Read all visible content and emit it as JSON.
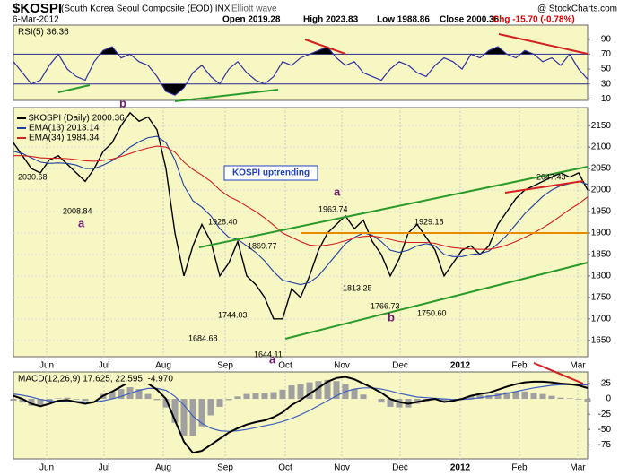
{
  "chart_data": [
    {
      "type": "line",
      "title": "$KOSPI",
      "subtitle": "(South Korea Seoul Composite (EOD) INX",
      "overlay": "Elliott wave",
      "source": "@ StockCharts.com",
      "date": "6-Mar-2012",
      "stats": [
        "Open 2019.28",
        "High 2023.83",
        "Low 1988.86",
        "Close 2000.36",
        "Chg -15.70 (-0.78%)"
      ],
      "note": "KOSPI uptrending",
      "annotations": [
        "2030.68",
        "2008.84",
        "1928.40",
        "1869.77",
        "1963.74",
        "1929.18",
        "2047.43",
        "1813.25",
        "1766.73",
        "1750.60",
        "1744.03",
        "1684.68",
        "1644.11"
      ],
      "wave_labels": [
        "a",
        "b",
        "a",
        "b",
        "a"
      ],
      "xlim": [
        0,
        64
      ],
      "xticks": [
        {
          "value": 3.7,
          "label": "Jun"
        },
        {
          "value": 10.1,
          "label": "Jul"
        },
        {
          "value": 16.7,
          "label": "Aug"
        },
        {
          "value": 23.6,
          "label": "Sep"
        },
        {
          "value": 30.3,
          "label": "Oct"
        },
        {
          "value": 36.6,
          "label": "Nov"
        },
        {
          "value": 43.1,
          "label": "Dec"
        },
        {
          "value": 49.8,
          "label": "2012"
        },
        {
          "value": 56.4,
          "label": "Feb"
        },
        {
          "value": 62.9,
          "label": "Mar"
        }
      ],
      "ylim": [
        1612,
        2192
      ],
      "yticks": [
        2150,
        2100,
        2050,
        2000,
        1950,
        1900,
        1850,
        1800,
        1750,
        1700,
        1650
      ],
      "grid": true,
      "series": [
        {
          "name": "$KOSPI (Daily) 2000.36",
          "color": "#000000",
          "values": [
            2110,
            2080,
            2050,
            2040,
            2070,
            2080,
            2060,
            2040,
            2020,
            2050,
            2090,
            2110,
            2150,
            2180,
            2160,
            2170,
            2140,
            2050,
            1900,
            1800,
            1870,
            1920,
            1880,
            1800,
            1830,
            1880,
            1800,
            1780,
            1750,
            1700,
            1700,
            1770,
            1750,
            1800,
            1860,
            1900,
            1920,
            1940,
            1910,
            1930,
            1880,
            1850,
            1800,
            1840,
            1900,
            1920,
            1890,
            1860,
            1800,
            1830,
            1860,
            1870,
            1850,
            1870,
            1920,
            1950,
            1980,
            2000,
            2010,
            2020,
            2030,
            2040,
            2030,
            2040,
            2000
          ]
        },
        {
          "name": "EMA(13) 2013.14",
          "color": "#1f3f9f",
          "values": [
            2090,
            2085,
            2075,
            2065,
            2062,
            2063,
            2062,
            2058,
            2050,
            2050,
            2058,
            2068,
            2082,
            2100,
            2112,
            2122,
            2125,
            2110,
            2070,
            2010,
            1975,
            1960,
            1940,
            1910,
            1890,
            1885,
            1870,
            1855,
            1835,
            1810,
            1790,
            1785,
            1780,
            1785,
            1800,
            1825,
            1850,
            1875,
            1890,
            1900,
            1895,
            1880,
            1860,
            1855,
            1860,
            1870,
            1875,
            1870,
            1850,
            1845,
            1845,
            1850,
            1852,
            1858,
            1875,
            1895,
            1920,
            1945,
            1965,
            1985,
            2000,
            2010,
            2015,
            2020,
            2013
          ]
        },
        {
          "name": "EMA(34) 1984.34",
          "color": "#d42020",
          "values": [
            2080,
            2080,
            2078,
            2075,
            2074,
            2074,
            2073,
            2071,
            2068,
            2067,
            2069,
            2072,
            2078,
            2085,
            2092,
            2098,
            2102,
            2100,
            2088,
            2065,
            2048,
            2035,
            2020,
            2000,
            1985,
            1975,
            1962,
            1950,
            1935,
            1918,
            1900,
            1890,
            1880,
            1872,
            1870,
            1872,
            1876,
            1882,
            1888,
            1892,
            1893,
            1890,
            1885,
            1880,
            1878,
            1878,
            1878,
            1876,
            1870,
            1866,
            1864,
            1863,
            1862,
            1862,
            1866,
            1872,
            1880,
            1890,
            1900,
            1912,
            1925,
            1940,
            1955,
            1968,
            1984
          ]
        }
      ]
    },
    {
      "type": "line",
      "title": "RSI(5) 36.36",
      "xlim": [
        0,
        64
      ],
      "ylim": [
        8,
        109
      ],
      "yticks": [
        90,
        70,
        50,
        30,
        10
      ],
      "color": "#3030a0",
      "overbought": 70,
      "oversold": 30,
      "values": [
        60,
        45,
        30,
        35,
        55,
        70,
        50,
        40,
        35,
        60,
        75,
        80,
        65,
        70,
        60,
        55,
        40,
        20,
        15,
        25,
        45,
        55,
        40,
        30,
        50,
        60,
        45,
        35,
        30,
        40,
        60,
        55,
        65,
        70,
        75,
        80,
        65,
        55,
        60,
        45,
        40,
        35,
        50,
        60,
        55,
        45,
        40,
        55,
        65,
        60,
        50,
        70,
        65,
        75,
        80,
        70,
        65,
        75,
        70,
        60,
        65,
        55,
        70,
        50,
        36.36
      ]
    },
    {
      "type": "macd",
      "title": "MACD(12,26,9) 17.625, 22.595, -4.970",
      "xlim": [
        0,
        64
      ],
      "ylim": [
        -98,
        44
      ],
      "yticks": [
        25,
        0,
        -25,
        -50,
        -75
      ],
      "xticks": [
        {
          "value": 3.7,
          "label": "Jun"
        },
        {
          "value": 10.1,
          "label": "Jul"
        },
        {
          "value": 16.7,
          "label": "Aug"
        },
        {
          "value": 23.6,
          "label": "Sep"
        },
        {
          "value": 30.3,
          "label": "Oct"
        },
        {
          "value": 36.6,
          "label": "Nov"
        },
        {
          "value": 43.1,
          "label": "Dec"
        },
        {
          "value": 49.8,
          "label": "2012"
        },
        {
          "value": 56.4,
          "label": "Feb"
        },
        {
          "value": 62.9,
          "label": "Mar"
        }
      ],
      "series": [
        {
          "name": "MACD",
          "color": "#000000",
          "values": [
            5,
            0,
            -8,
            -12,
            -8,
            -3,
            -2,
            -5,
            -8,
            -5,
            5,
            12,
            20,
            28,
            30,
            25,
            15,
            0,
            -35,
            -70,
            -88,
            -85,
            -75,
            -65,
            -55,
            -48,
            -42,
            -38,
            -35,
            -30,
            -22,
            -10,
            -2,
            8,
            18,
            28,
            34,
            36,
            32,
            25,
            18,
            10,
            0,
            -5,
            -8,
            -5,
            -2,
            0,
            -5,
            -3,
            0,
            5,
            8,
            10,
            15,
            20,
            24,
            27,
            28,
            28,
            27,
            25,
            24,
            22,
            17.625
          ]
        },
        {
          "name": "Signal",
          "color": "#4060c0",
          "values": [
            8,
            6,
            3,
            -1,
            -3,
            -4,
            -4,
            -4,
            -5,
            -5,
            -3,
            0,
            4,
            9,
            14,
            17,
            17,
            14,
            4,
            -10,
            -28,
            -40,
            -48,
            -52,
            -53,
            -52,
            -50,
            -47,
            -44,
            -41,
            -37,
            -32,
            -26,
            -19,
            -11,
            -3,
            5,
            12,
            16,
            18,
            18,
            16,
            13,
            9,
            6,
            3,
            2,
            1,
            0,
            -1,
            -1,
            0,
            2,
            4,
            6,
            9,
            12,
            15,
            18,
            20,
            22,
            23,
            23,
            23,
            22.595
          ]
        },
        {
          "name": "Histogram",
          "color": "#a0a0a0",
          "values": [
            -3,
            -6,
            -11,
            -11,
            -5,
            1,
            2,
            -1,
            -3,
            0,
            8,
            12,
            16,
            19,
            16,
            8,
            -2,
            -14,
            -39,
            -60,
            -60,
            -45,
            -27,
            -13,
            -2,
            4,
            8,
            9,
            9,
            11,
            15,
            22,
            24,
            27,
            29,
            31,
            29,
            24,
            16,
            7,
            0,
            -6,
            -13,
            -14,
            -14,
            -8,
            -4,
            -1,
            -5,
            -2,
            1,
            5,
            6,
            6,
            9,
            11,
            12,
            12,
            10,
            8,
            5,
            2,
            1,
            -1,
            -4.97
          ]
        }
      ]
    }
  ]
}
